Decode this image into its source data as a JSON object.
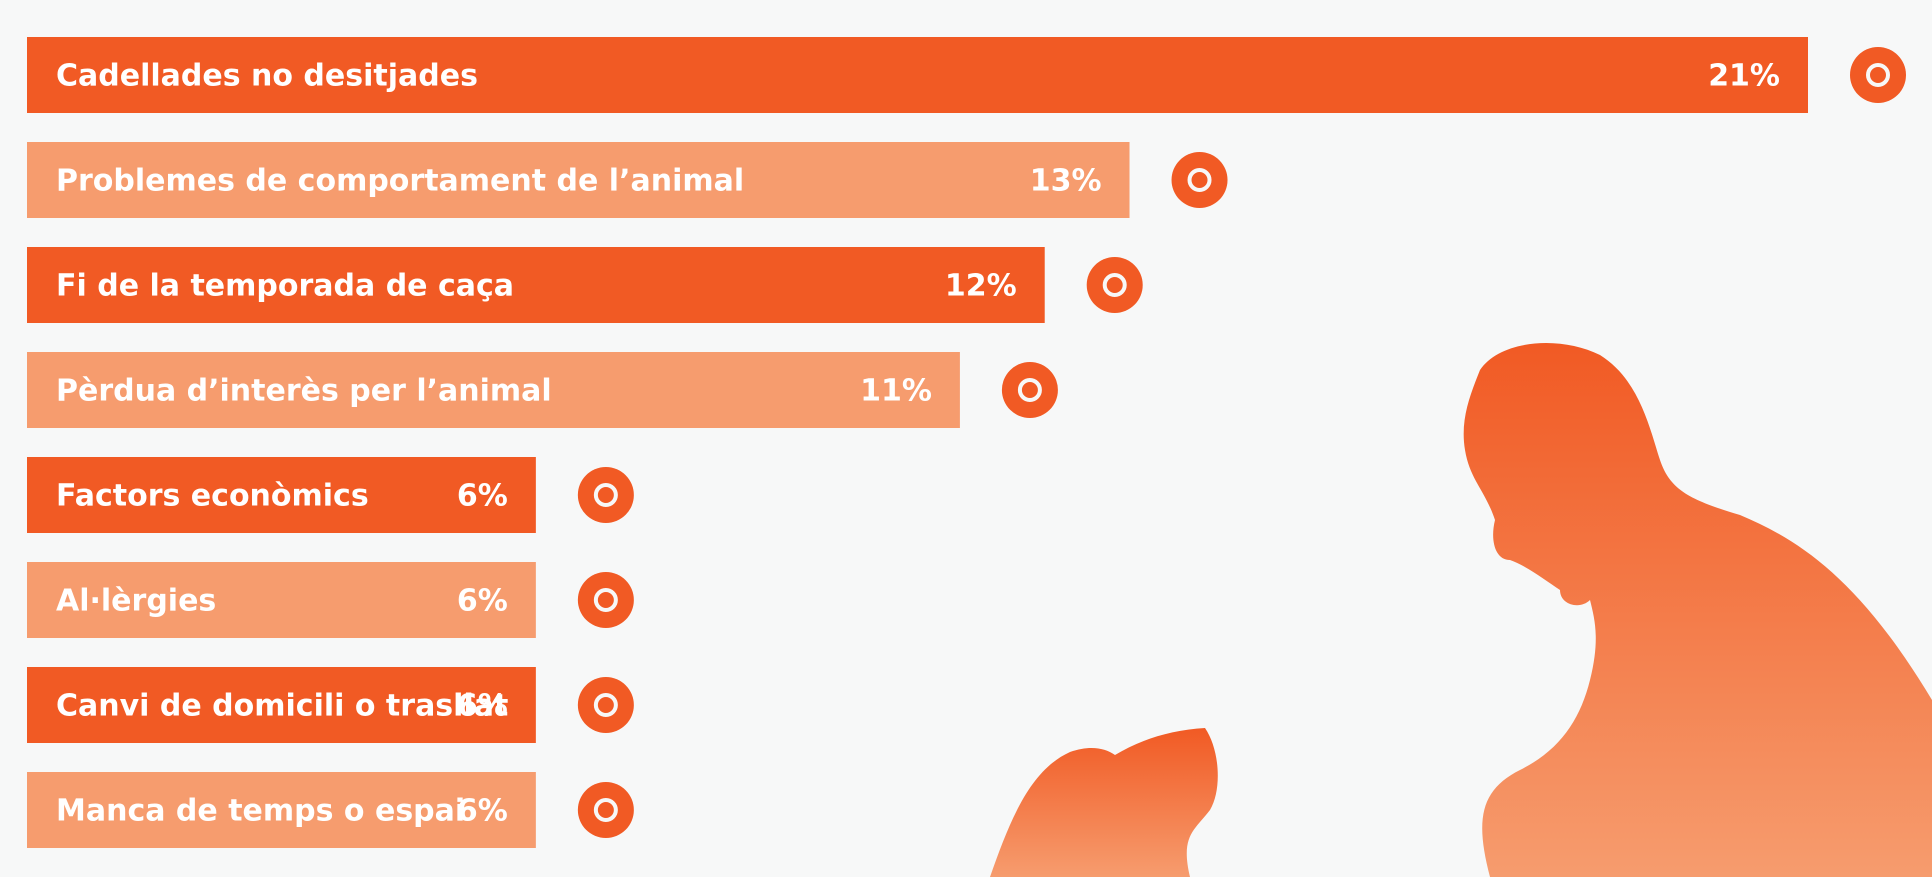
{
  "chart_data": {
    "type": "bar",
    "orientation": "horizontal",
    "categories": [
      "Cadellades no desitjades",
      "Problemes de comportament de l’animal",
      "Fi de la temporada de caça",
      "Pèrdua d’interès per l’animal",
      "Factors econòmics",
      "Al·lèrgies",
      "Canvi de domicili o trasllat",
      "Manca de temps o espai"
    ],
    "values": [
      21,
      13,
      12,
      11,
      6,
      6,
      6,
      6
    ],
    "value_labels": [
      "21%",
      "13%",
      "12%",
      "11%",
      "6%",
      "6%",
      "6%",
      "6%"
    ],
    "colors": [
      "#f15a24",
      "#f69c6e",
      "#f15a24",
      "#f69c6e",
      "#f15a24",
      "#f69c6e",
      "#f15a24",
      "#f69c6e"
    ]
  }
}
